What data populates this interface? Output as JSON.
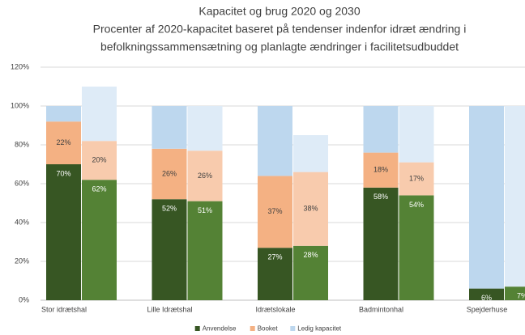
{
  "chart_data": {
    "type": "grouped_stacked_bar",
    "title": "Kapacitet og brug 2020 og 2030",
    "subtitle": [
      "Procenter af 2020-kapacitet baseret på tendenser indenfor idræt ændring i",
      "befolkningssammensætning og planlagte ændringer i facilitetsudbuddet"
    ],
    "categories": [
      "Stor idrætshal",
      "Lille Idrætshal",
      "Idrætslokale",
      "Badmintonhal",
      "Spejderhuse"
    ],
    "series": [
      {
        "name": "Anvendelse",
        "colors": [
          "#375623",
          "#548235"
        ],
        "values": [
          [
            70,
            62
          ],
          [
            52,
            51
          ],
          [
            27,
            28
          ],
          [
            58,
            54
          ],
          [
            6,
            7
          ]
        ],
        "value_labels": [
          [
            "70%",
            "62%"
          ],
          [
            "52%",
            "51%"
          ],
          [
            "27%",
            "28%"
          ],
          [
            "58%",
            "54%"
          ],
          [
            "6%",
            "7%"
          ]
        ]
      },
      {
        "name": "Booket",
        "colors": [
          "#f4b183",
          "#f8cbad"
        ],
        "values": [
          [
            22,
            20
          ],
          [
            26,
            26
          ],
          [
            37,
            38
          ],
          [
            18,
            17
          ],
          [
            0,
            0
          ]
        ],
        "value_labels": [
          [
            "22%",
            "20%"
          ],
          [
            "26%",
            "26%"
          ],
          [
            "37%",
            "38%"
          ],
          [
            "18%",
            "17%"
          ],
          [
            null,
            null
          ]
        ]
      },
      {
        "name": "Ledig kapacitet",
        "colors": [
          "#bdd7ee",
          "#deebf7"
        ],
        "values": [
          [
            8,
            28
          ],
          [
            22,
            23
          ],
          [
            36,
            19
          ],
          [
            24,
            29
          ],
          [
            94,
            93
          ]
        ]
      }
    ],
    "ylim": [
      0,
      120
    ],
    "yticks": [
      {
        "value": 0,
        "label": "0%"
      },
      {
        "value": 20,
        "label": "20%"
      },
      {
        "value": 40,
        "label": "40%"
      },
      {
        "value": 60,
        "label": "60%"
      },
      {
        "value": 80,
        "label": "80%"
      },
      {
        "value": 100,
        "label": "100%"
      },
      {
        "value": 120,
        "label": "120%"
      }
    ],
    "grid": true,
    "legend": "bottom"
  }
}
